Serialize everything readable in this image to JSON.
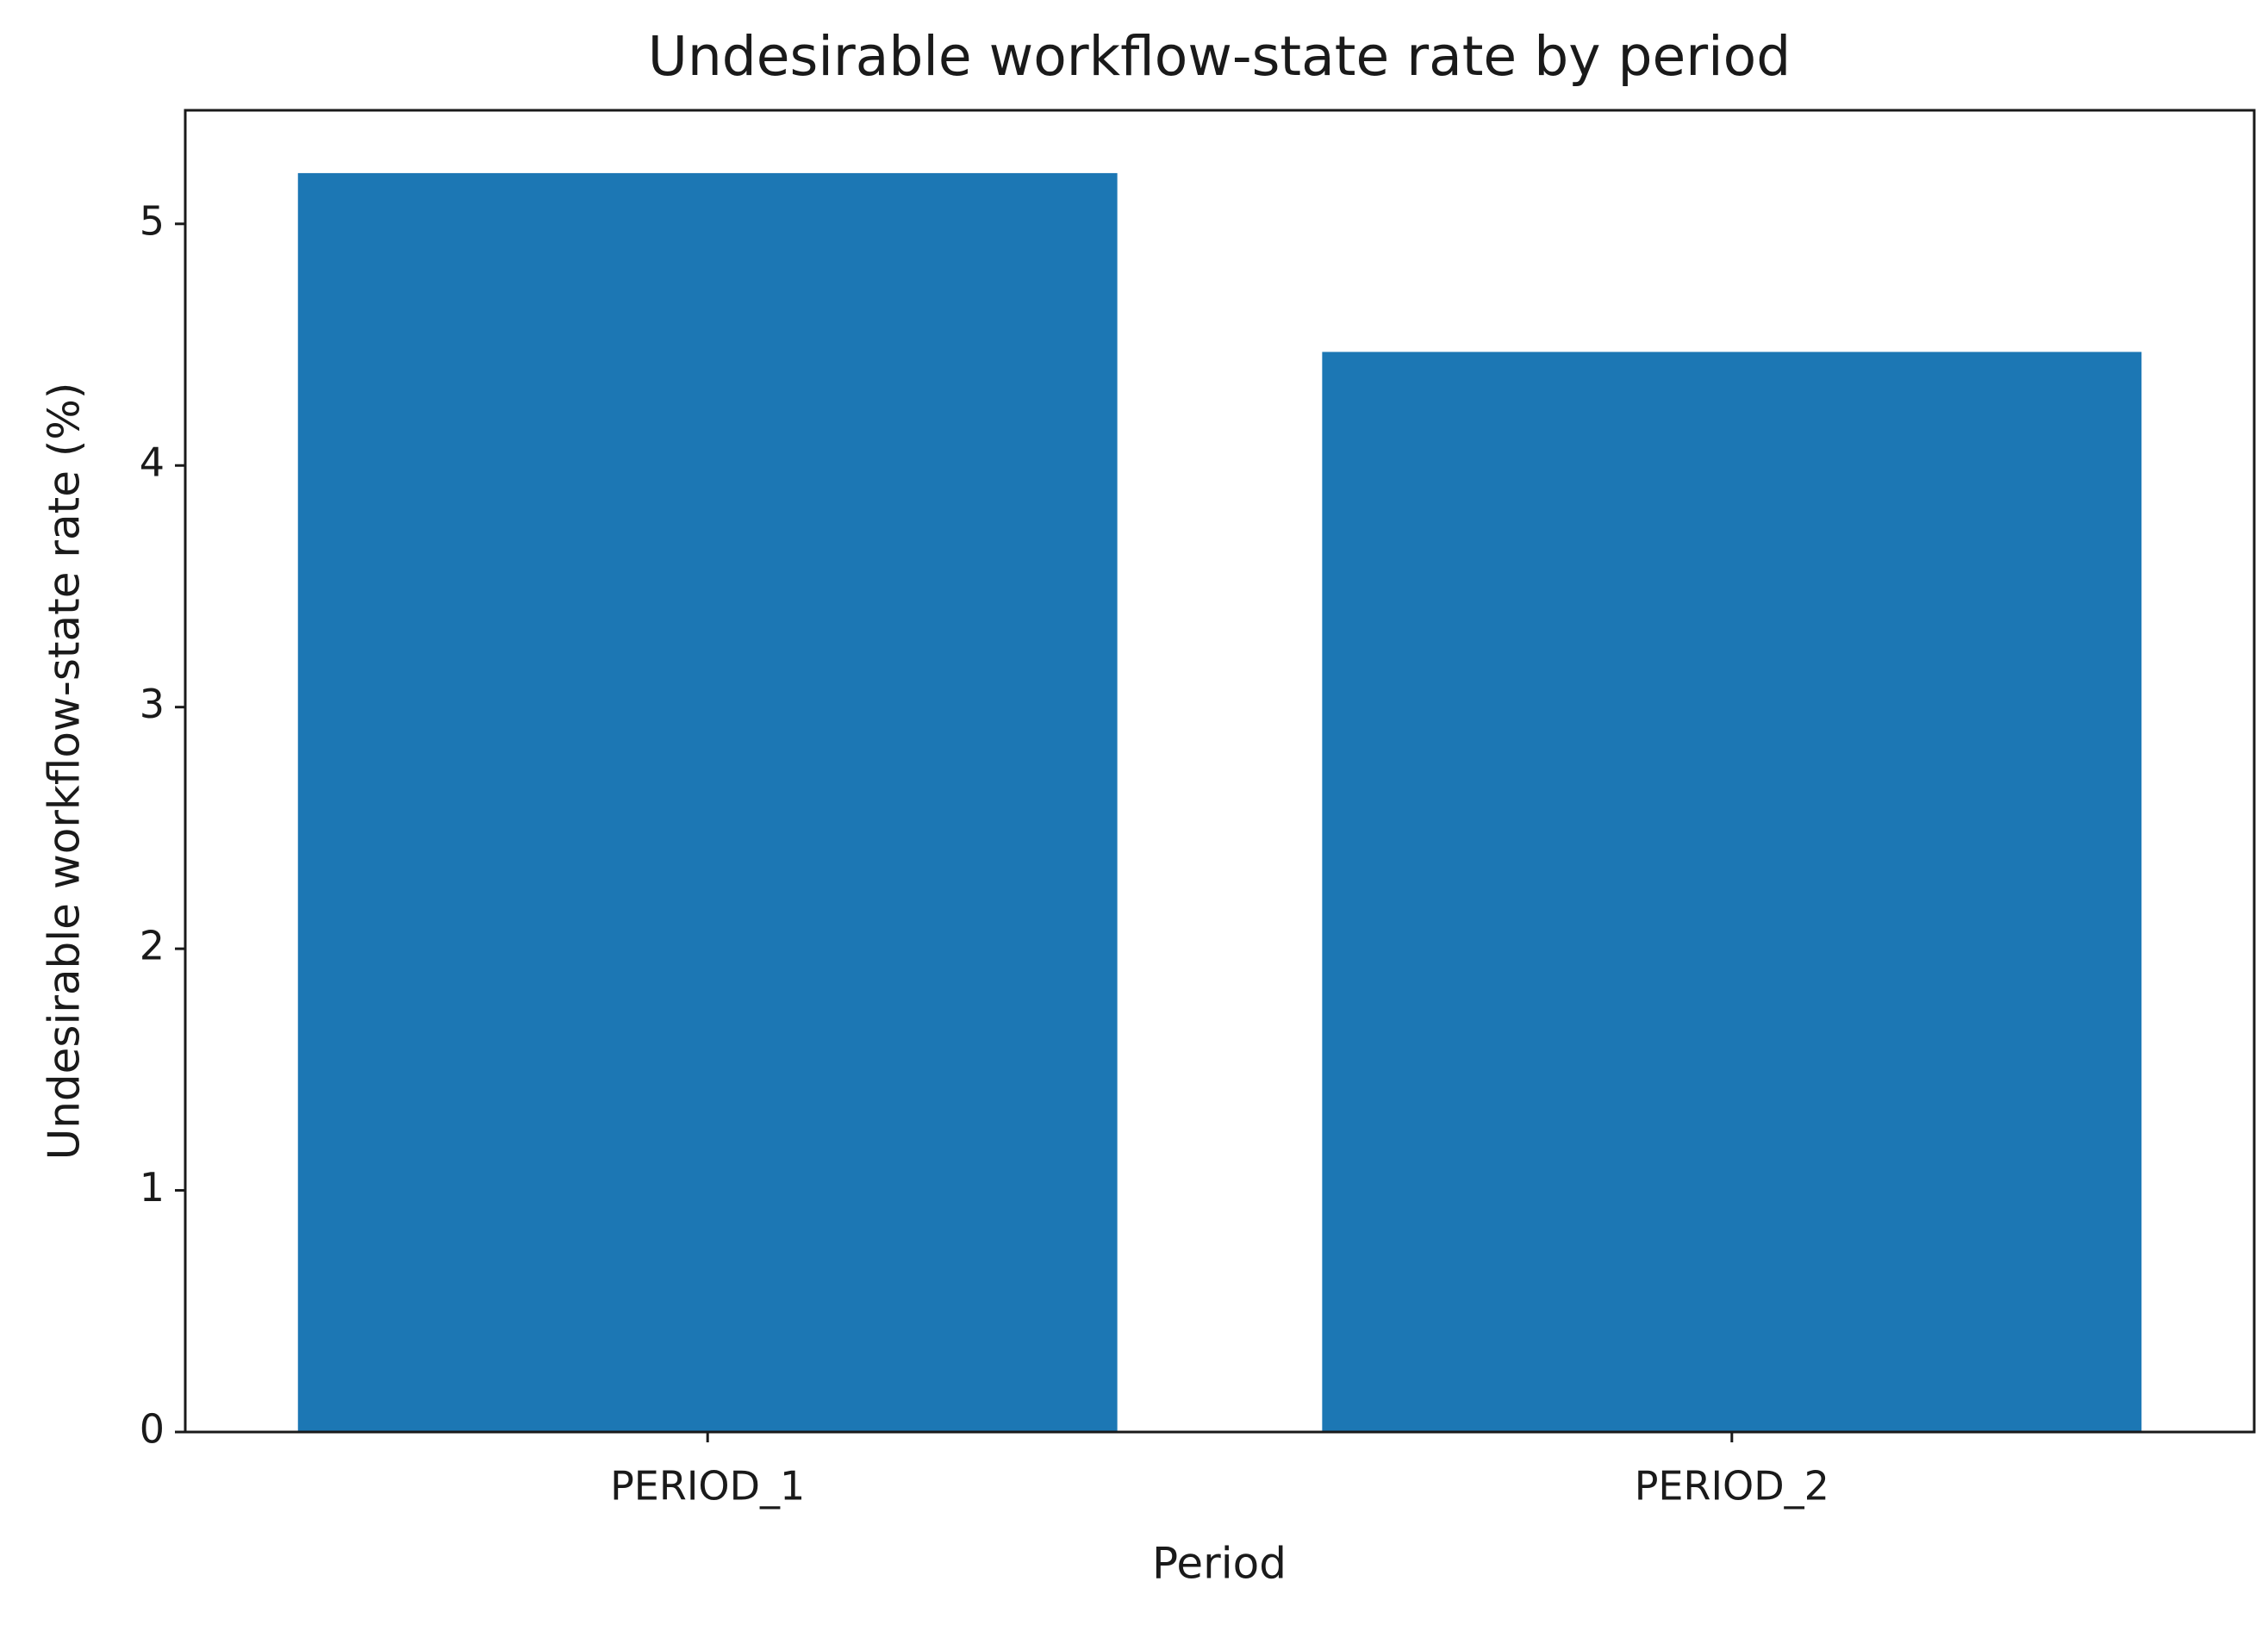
{
  "chart_data": {
    "type": "bar",
    "title": "Undesirable workflow-state rate by period",
    "x_label": "Period",
    "y_label": "Undesirable workflow-state rate (%)",
    "categories": [
      "PERIOD_1",
      "PERIOD_2"
    ],
    "values": [
      5.21,
      4.47
    ],
    "color": "#1c77b4",
    "ylim": [
      0,
      5.47
    ],
    "yticks": [
      0,
      1,
      2,
      3,
      4,
      5
    ],
    "grid": false
  }
}
